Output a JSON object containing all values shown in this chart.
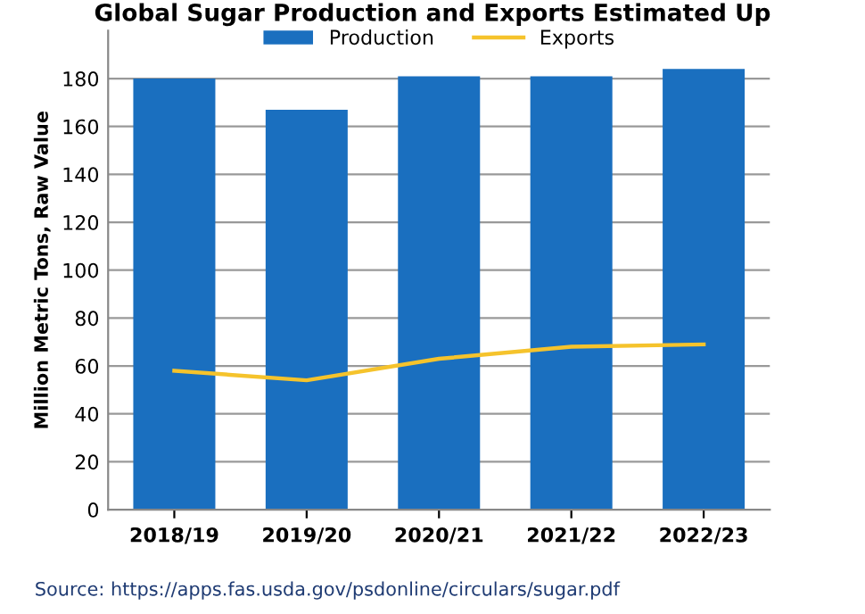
{
  "chart_data": {
    "type": "bar",
    "title": "Global Sugar Production and Exports Estimated Up",
    "ylabel": "Million Metric Tons, Raw Value",
    "categories": [
      "2018/19",
      "2019/20",
      "2020/21",
      "2021/22",
      "2022/23"
    ],
    "series": [
      {
        "name": "Production",
        "color": "#1a6fbf",
        "values": [
          180,
          167,
          181,
          181,
          184
        ]
      },
      {
        "name": "Exports",
        "type": "line",
        "color": "#f5c32c",
        "values": [
          58,
          54,
          63,
          68,
          69
        ]
      }
    ],
    "ylim": [
      0,
      200
    ],
    "yticks": [
      0,
      20,
      40,
      60,
      80,
      100,
      120,
      140,
      160,
      180
    ],
    "grid": "y",
    "legend": "top",
    "annotations": [
      "Source: https://apps.fas.usda.gov/psdonline/circulars/sugar.pdf"
    ]
  }
}
